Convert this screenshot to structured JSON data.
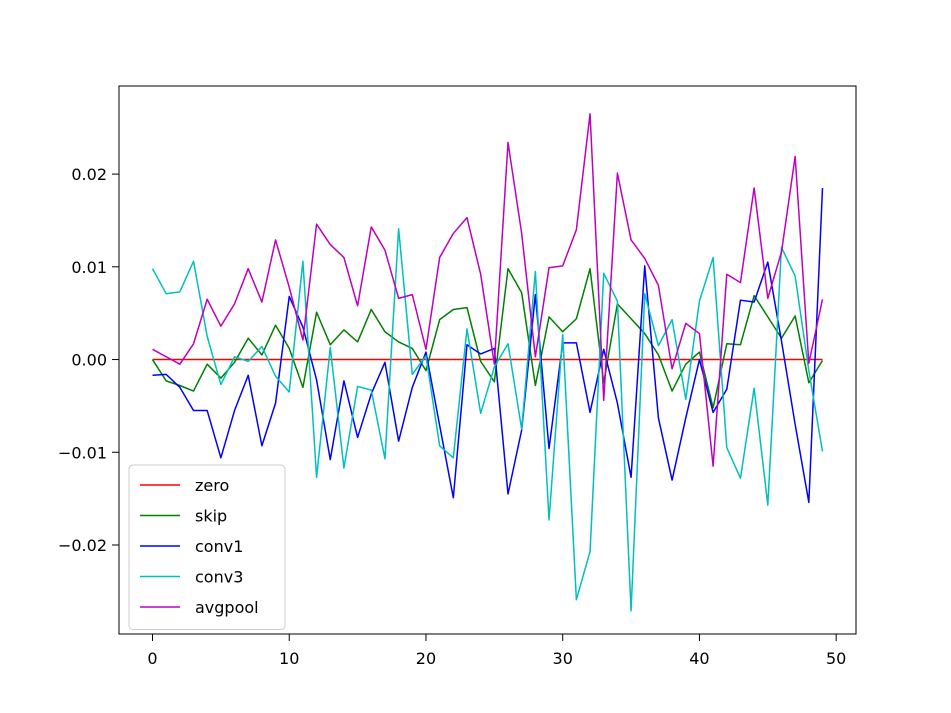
{
  "chart_data": {
    "type": "line",
    "title": "",
    "xlabel": "",
    "ylabel": "",
    "xlim": [
      -2.45,
      51.45
    ],
    "ylim": [
      -0.0296,
      0.0295
    ],
    "xticks": [
      0,
      10,
      20,
      30,
      40,
      50
    ],
    "xtick_labels": [
      "0",
      "10",
      "20",
      "30",
      "40",
      "50"
    ],
    "yticks": [
      -0.02,
      -0.01,
      0.0,
      0.01,
      0.02
    ],
    "ytick_labels": [
      "−0.02",
      "−0.01",
      "0.00",
      "0.01",
      "0.02"
    ],
    "grid": false,
    "legend_position": "lower-left",
    "x": [
      0,
      1,
      2,
      3,
      4,
      5,
      6,
      7,
      8,
      9,
      10,
      11,
      12,
      13,
      14,
      15,
      16,
      17,
      18,
      19,
      20,
      21,
      22,
      23,
      24,
      25,
      26,
      27,
      28,
      29,
      30,
      31,
      32,
      33,
      34,
      35,
      36,
      37,
      38,
      39,
      40,
      41,
      42,
      43,
      44,
      45,
      46,
      47,
      48,
      49
    ],
    "series": [
      {
        "name": "zero",
        "color": "#ff0000",
        "values": [
          0,
          0,
          0,
          0,
          0,
          0,
          0,
          0,
          0,
          0,
          0,
          0,
          0,
          0,
          0,
          0,
          0,
          0,
          0,
          0,
          0,
          0,
          0,
          0,
          0,
          0,
          0,
          0,
          0,
          0,
          0,
          0,
          0,
          0,
          0,
          0,
          0,
          0,
          0,
          0,
          0,
          0,
          0,
          0,
          0,
          0,
          0,
          0,
          0,
          0
        ]
      },
      {
        "name": "skip",
        "color": "#008000",
        "values": [
          0.0,
          -0.0023,
          -0.0028,
          -0.0034,
          -0.0005,
          -0.002,
          -0.0003,
          0.0023,
          0.0005,
          0.0037,
          0.0012,
          -0.003,
          0.0051,
          0.0016,
          0.0032,
          0.0019,
          0.0054,
          0.003,
          0.0019,
          0.0012,
          -0.0012,
          0.0043,
          0.0054,
          0.0056,
          -0.0002,
          -0.0024,
          0.0098,
          0.0072,
          -0.0028,
          0.0046,
          0.003,
          0.0044,
          0.0098,
          -0.0025,
          0.006,
          0.0044,
          0.0028,
          0.0005,
          -0.0034,
          -0.0005,
          0.0008,
          -0.0052,
          0.0017,
          0.0016,
          0.0069,
          0.0046,
          0.0023,
          0.0047,
          -0.0025,
          -0.0001
        ]
      },
      {
        "name": "conv1",
        "color": "#0000ff",
        "values": [
          -0.0017,
          -0.0016,
          -0.003,
          -0.0055,
          -0.0055,
          -0.0106,
          -0.0055,
          -0.0017,
          -0.0093,
          -0.0047,
          0.0068,
          0.0035,
          -0.0022,
          -0.0108,
          -0.0023,
          -0.0084,
          -0.0037,
          -0.0003,
          -0.0088,
          -0.003,
          0.0008,
          -0.0071,
          -0.0149,
          0.0016,
          0.0006,
          0.0012,
          -0.0145,
          -0.0076,
          0.007,
          -0.0096,
          0.0018,
          0.0018,
          -0.0057,
          0.0011,
          -0.0047,
          -0.0127,
          0.0101,
          -0.0063,
          -0.013,
          -0.0063,
          0.0,
          -0.0057,
          -0.0032,
          0.0064,
          0.0062,
          0.0105,
          0.002,
          -0.007,
          -0.0154,
          0.0185
        ]
      },
      {
        "name": "conv3",
        "color": "#00bfbf",
        "values": [
          0.0098,
          0.0071,
          0.0073,
          0.0106,
          0.0025,
          -0.0027,
          0.0003,
          -0.0002,
          0.0014,
          -0.0018,
          -0.0035,
          0.0106,
          -0.0127,
          0.0013,
          -0.0117,
          -0.0029,
          -0.0033,
          -0.0107,
          0.0141,
          -0.0016,
          0.0004,
          -0.0093,
          -0.0106,
          0.0033,
          -0.0058,
          -0.0008,
          0.0017,
          -0.0075,
          0.0095,
          -0.0173,
          0.0027,
          -0.0259,
          -0.0207,
          0.0093,
          0.0063,
          -0.0271,
          0.0071,
          0.0015,
          0.0043,
          -0.0043,
          0.0063,
          0.011,
          -0.0095,
          -0.0128,
          -0.0031,
          -0.0157,
          0.0121,
          0.009,
          -0.0012,
          -0.0099
        ]
      },
      {
        "name": "avgpool",
        "color": "#bf00bf",
        "values": [
          0.0011,
          0.0003,
          -0.0005,
          0.0017,
          0.0065,
          0.0036,
          0.006,
          0.0098,
          0.0062,
          0.0129,
          0.0078,
          0.0021,
          0.0146,
          0.0124,
          0.011,
          0.0058,
          0.0143,
          0.0118,
          0.0066,
          0.007,
          0.0011,
          0.011,
          0.0136,
          0.0153,
          0.0092,
          -0.0005,
          0.0234,
          0.0136,
          0.0003,
          0.0099,
          0.0101,
          0.014,
          0.0265,
          -0.0044,
          0.0201,
          0.0129,
          0.0109,
          0.008,
          -0.001,
          0.0039,
          0.0028,
          -0.0115,
          0.0092,
          0.0083,
          0.0185,
          0.0066,
          0.0116,
          0.0219,
          -0.0004,
          0.0065
        ]
      }
    ]
  }
}
